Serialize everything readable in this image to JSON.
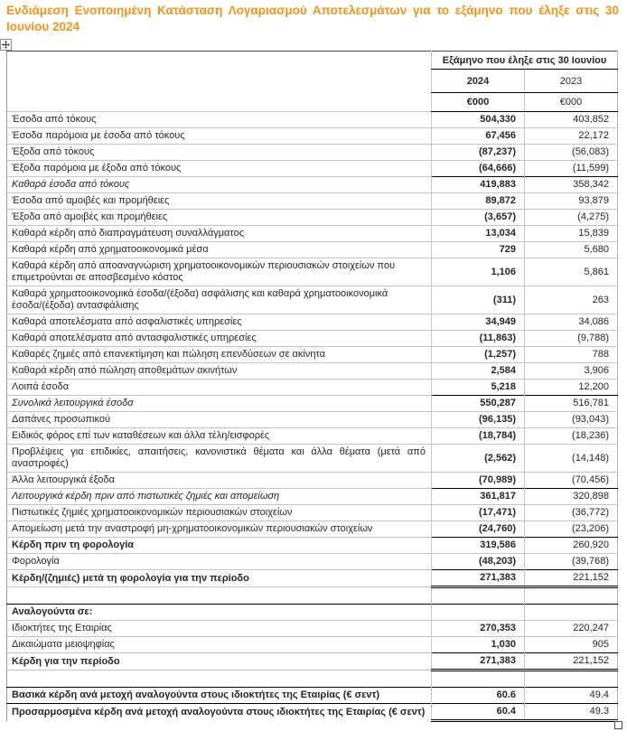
{
  "title": "Ενδιάμεση Ενοποιημένη Κατάσταση Λογαριασμού Αποτελεσμάτων για το εξάμηνο που έληξε στις 30 Ιουνίου 2024",
  "colors": {
    "title_orange": "#F0941C",
    "strong_line": "#000000",
    "grid_line": "#C4C4C4",
    "text": "#262626"
  },
  "icons": {
    "move": "table-move-icon",
    "resize": "table-resize-handle-icon"
  },
  "table": {
    "header": {
      "period": "Εξάμηνο που έληξε στις 30 Ιουνίου",
      "years": [
        "2024",
        "2023"
      ],
      "units": [
        "€000",
        "€000"
      ]
    },
    "rows": [
      {
        "label": "Έσοδα από τόκους",
        "v2024": "504,330",
        "v2023": "403,852"
      },
      {
        "label": "Έσοδα παρόμοια με έσοδα από τόκους",
        "v2024": "67,456",
        "v2023": "22,172"
      },
      {
        "label": "Έξοδα από τόκους",
        "v2024": "(87,237)",
        "v2023": "(56,083)"
      },
      {
        "label": "Έξοδα παρόμοια με έξοδα από τόκους",
        "v2024": "(64,666)",
        "v2023": "(11,599)"
      },
      {
        "label": "Καθαρά έσοδα από τόκους",
        "v2024": "419,883",
        "v2023": "358,342",
        "italic": true,
        "top": true
      },
      {
        "label": "Έσοδα από αμοιβές και προμήθειες",
        "v2024": "89,872",
        "v2023": "93,879"
      },
      {
        "label": "Έξοδα από αμοιβές και προμήθειες",
        "v2024": "(3,657)",
        "v2023": "(4,275)"
      },
      {
        "label": "Καθαρά κέρδη από διαπραγμάτευση συναλλάγματος",
        "v2024": "13,034",
        "v2023": "15,839"
      },
      {
        "label": "Καθαρά κέρδη από χρηματοοικονομικά μέσα",
        "v2024": "729",
        "v2023": "5,680"
      },
      {
        "label": "Καθαρά κέρδη από αποαναγνώριση χρηματοοικονομικών περιουσιακών στοιχείων που επιμετρούνται σε αποσβεσμένο κόστος",
        "v2024": "1,106",
        "v2023": "5,861"
      },
      {
        "label": "Καθαρά χρηματοοικονομικά έσοδα/(έξοδα) ασφάλισης και καθαρά χρηματοοικονομικά έσοδα/(έξοδα) αντασφάλισης",
        "v2024": "(311)",
        "v2023": "263"
      },
      {
        "label": "Καθαρά αποτελέσματα από ασφαλιστικές υπηρεσίες",
        "v2024": "34,949",
        "v2023": "34,086"
      },
      {
        "label": "Καθαρά αποτελέσματα από αντασφαλιστικές υπηρεσίες",
        "v2024": "(11,863)",
        "v2023": "(9,788)"
      },
      {
        "label": "Καθαρές ζημιές από επανεκτίμηση και πώληση επενδύσεων σε ακίνητα",
        "v2024": "(1,257)",
        "v2023": "788"
      },
      {
        "label": "Καθαρά κέρδη από πώληση αποθεμάτων ακινήτων",
        "v2024": "2,584",
        "v2023": "3,906"
      },
      {
        "label": "Λοιπά έσοδα",
        "v2024": "5,218",
        "v2023": "12,200"
      },
      {
        "label": "Συνολικά λειτουργικά έσοδα",
        "v2024": "550,287",
        "v2023": "516,781",
        "italic": true,
        "top": true
      },
      {
        "label": "Δαπάνες προσωπικού",
        "v2024": "(96,135)",
        "v2023": "(93,043)"
      },
      {
        "label": "Ειδικός φόρος επί των καταθέσεων και άλλα τέλη/εισφορές",
        "v2024": "(18,784)",
        "v2023": "(18,236)"
      },
      {
        "label": "Προβλέψεις για επιδικίες, απαιτήσεις, κανονιστικά θέματα και άλλα θέματα (μετά από αναστροφές)",
        "v2024": "(2,562)",
        "v2023": "(14,148)",
        "justify": true
      },
      {
        "label": "Άλλα λειτουργικά έξοδα",
        "v2024": "(70,989)",
        "v2023": "(70,456)"
      },
      {
        "label": "Λειτουργικά κέρδη πριν από πιστωτικές ζημιές και απομείωση",
        "v2024": "361,817",
        "v2023": "320,898",
        "italic": true,
        "top": true
      },
      {
        "label": "Πιστωτικές ζημιές χρηματοοικονομικών περιουσιακών στοιχείων",
        "v2024": "(17,471)",
        "v2023": "(36,772)"
      },
      {
        "label": "Απομείωση μετά την αναστροφή μη-χρηματοοικονομικών περιουσιακών στοιχείων",
        "v2024": "(24,760)",
        "v2023": "(23,206)"
      },
      {
        "label": "Κέρδη πριν τη φορολογία",
        "v2024": "319,586",
        "v2023": "260,920",
        "bold": true,
        "top": true
      },
      {
        "label": "Φορολογία",
        "v2024": "(48,203)",
        "v2023": "(39,768)"
      },
      {
        "label": "Κέρδη/(ζημιές) μετά τη φορολογία για την περίοδο",
        "v2024": "271,383",
        "v2023": "221,152",
        "bold": true,
        "top": true,
        "double_bottom": true
      },
      {
        "spacer": true
      },
      {
        "label": "Αναλογούντα σε:",
        "v2024": "",
        "v2023": "",
        "bold": true,
        "full_top": true
      },
      {
        "label": "Ιδιοκτήτες της Εταιρίας",
        "v2024": "270,353",
        "v2023": "220,247"
      },
      {
        "label": "Δικαιώματα μειοψηφίας",
        "v2024": "1,030",
        "v2023": "905"
      },
      {
        "label": "Κέρδη για την περίοδο",
        "v2024": "271,383",
        "v2023": "221,152",
        "bold": true,
        "top": true,
        "double_bottom": true
      },
      {
        "spacer": true
      },
      {
        "label": "Βασικά κέρδη ανά μετοχή αναλογούντα στους ιδιοκτήτες της Εταιρίας (€ σεντ)",
        "v2024": "60.6",
        "v2023": "49.4",
        "bold": true,
        "full_top": true
      },
      {
        "label": "Προσαρμοσμένα κέρδη ανά μετοχή αναλογούντα στους ιδιοκτήτες της Εταιρίας (€ σεντ)",
        "v2024": "60.4",
        "v2023": "49.3",
        "bold": true,
        "full_top": true,
        "double_bottom": true
      }
    ]
  }
}
